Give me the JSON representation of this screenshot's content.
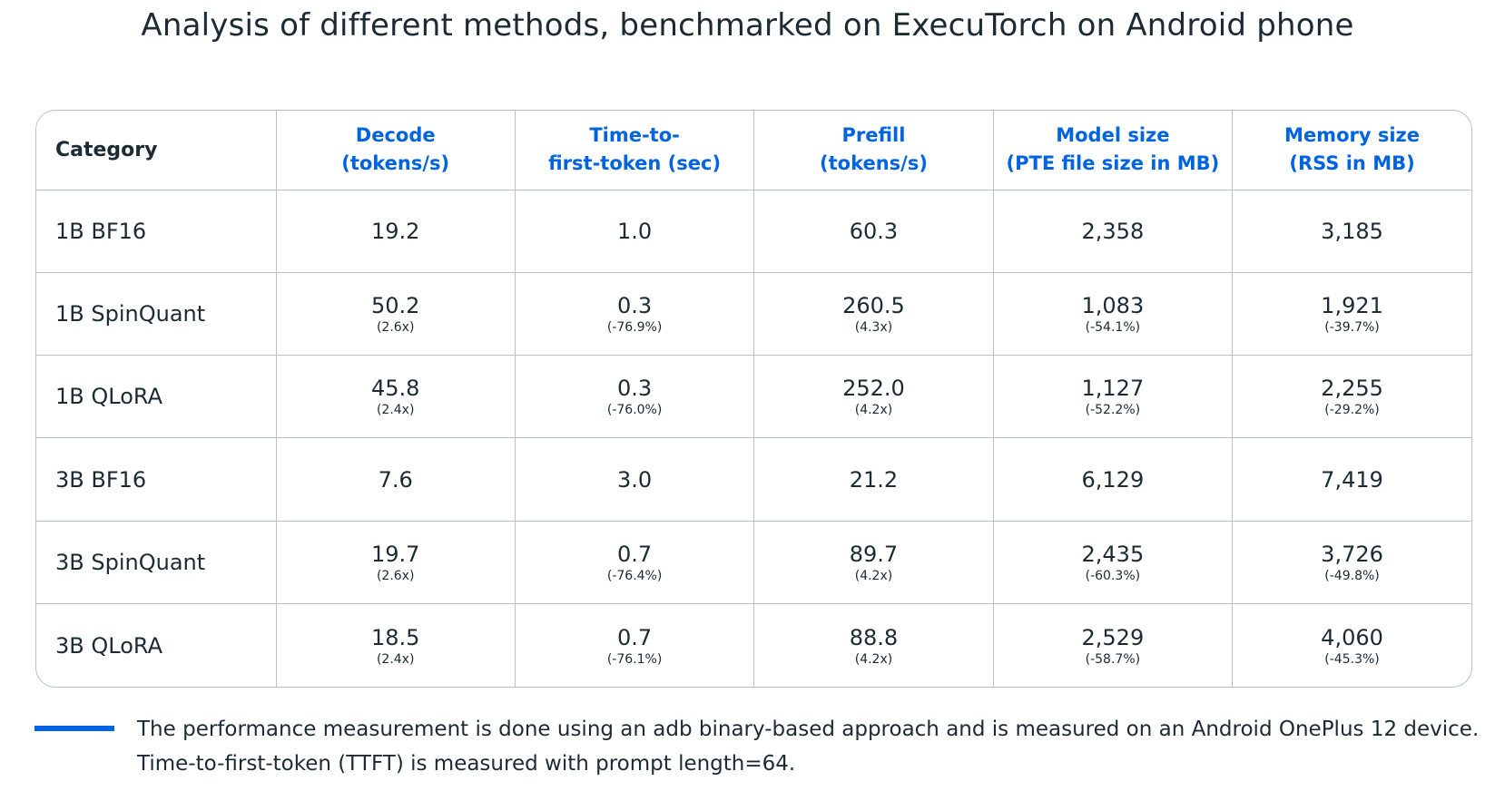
{
  "title": "Analysis of different methods, benchmarked on ExecuTorch on Android phone",
  "accent_color": "#0064e0",
  "chart_data": {
    "type": "table",
    "title": "Analysis of different methods, benchmarked on ExecuTorch on Android phone",
    "columns": [
      {
        "lines": [
          "Category"
        ]
      },
      {
        "lines": [
          "Decode",
          "(tokens/s)"
        ]
      },
      {
        "lines": [
          "Time-to-",
          "first-token (sec)"
        ]
      },
      {
        "lines": [
          "Prefill",
          "(tokens/s)"
        ]
      },
      {
        "lines": [
          "Model size",
          "(PTE file size in MB)"
        ]
      },
      {
        "lines": [
          "Memory size",
          "(RSS in MB)"
        ]
      }
    ],
    "rows": [
      {
        "category": "1B BF16",
        "cells": [
          {
            "value": "19.2",
            "delta": ""
          },
          {
            "value": "1.0",
            "delta": ""
          },
          {
            "value": "60.3",
            "delta": ""
          },
          {
            "value": "2,358",
            "delta": ""
          },
          {
            "value": "3,185",
            "delta": ""
          }
        ]
      },
      {
        "category": "1B SpinQuant",
        "cells": [
          {
            "value": "50.2",
            "delta": "(2.6x)"
          },
          {
            "value": "0.3",
            "delta": "(-76.9%)"
          },
          {
            "value": "260.5",
            "delta": "(4.3x)"
          },
          {
            "value": "1,083",
            "delta": "(-54.1%)"
          },
          {
            "value": "1,921",
            "delta": "(-39.7%)"
          }
        ]
      },
      {
        "category": "1B QLoRA",
        "cells": [
          {
            "value": "45.8",
            "delta": "(2.4x)"
          },
          {
            "value": "0.3",
            "delta": "(-76.0%)"
          },
          {
            "value": "252.0",
            "delta": "(4.2x)"
          },
          {
            "value": "1,127",
            "delta": "(-52.2%)"
          },
          {
            "value": "2,255",
            "delta": "(-29.2%)"
          }
        ]
      },
      {
        "category": "3B BF16",
        "cells": [
          {
            "value": "7.6",
            "delta": ""
          },
          {
            "value": "3.0",
            "delta": ""
          },
          {
            "value": "21.2",
            "delta": ""
          },
          {
            "value": "6,129",
            "delta": ""
          },
          {
            "value": "7,419",
            "delta": ""
          }
        ]
      },
      {
        "category": "3B SpinQuant",
        "cells": [
          {
            "value": "19.7",
            "delta": "(2.6x)"
          },
          {
            "value": "0.7",
            "delta": "(-76.4%)"
          },
          {
            "value": "89.7",
            "delta": "(4.2x)"
          },
          {
            "value": "2,435",
            "delta": "(-60.3%)"
          },
          {
            "value": "3,726",
            "delta": "(-49.8%)"
          }
        ]
      },
      {
        "category": "3B QLoRA",
        "cells": [
          {
            "value": "18.5",
            "delta": "(2.4x)"
          },
          {
            "value": "0.7",
            "delta": "(-76.1%)"
          },
          {
            "value": "88.8",
            "delta": "(4.2x)"
          },
          {
            "value": "2,529",
            "delta": "(-58.7%)"
          },
          {
            "value": "4,060",
            "delta": "(-45.3%)"
          }
        ]
      }
    ]
  },
  "footnote": "The performance measurement is done using an adb binary-based approach and is measured on an Android OnePlus 12 device. Time-to-first-token (TTFT) is measured with prompt length=64."
}
